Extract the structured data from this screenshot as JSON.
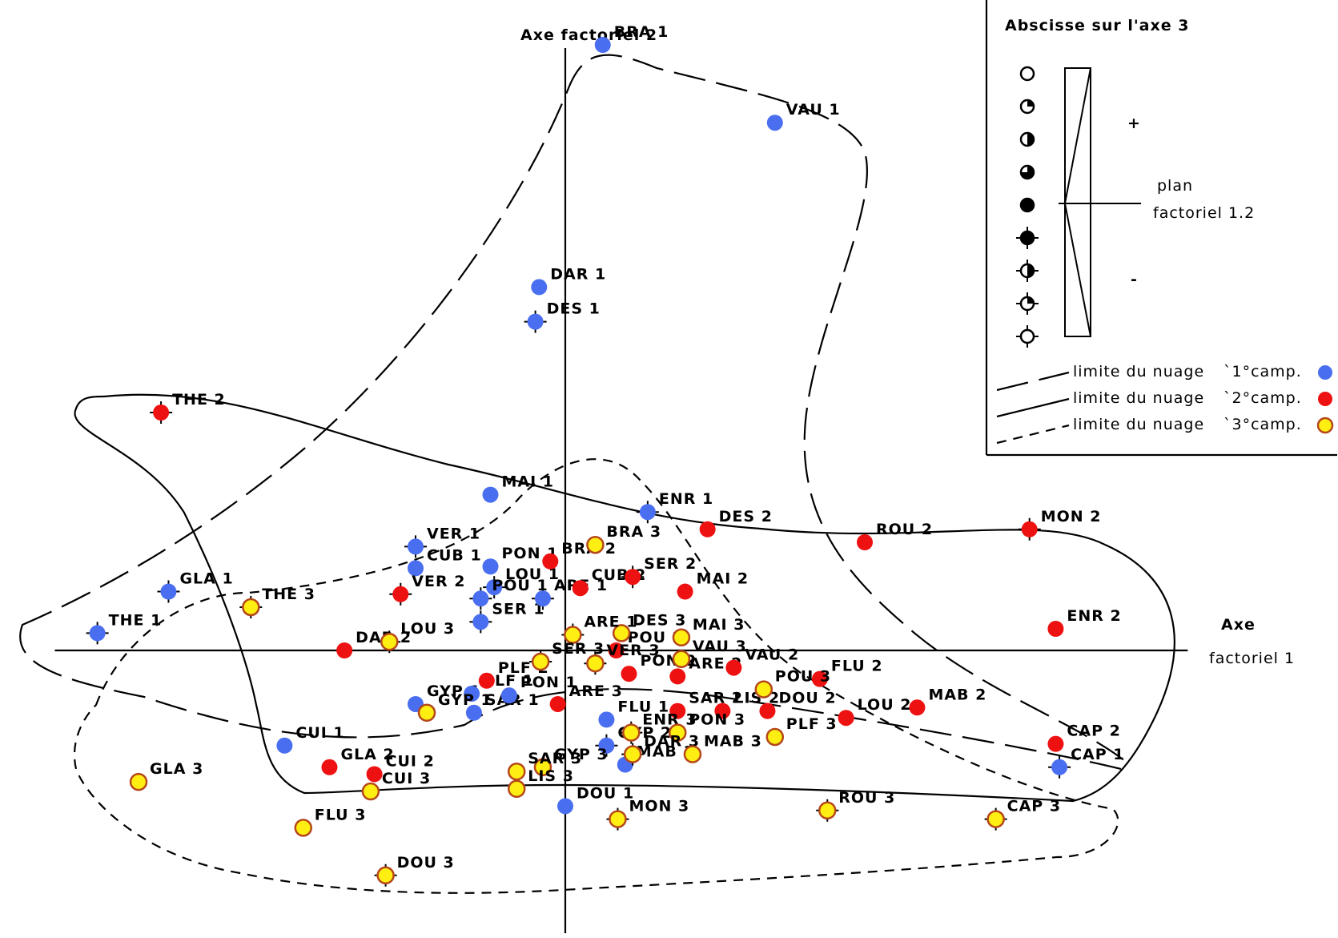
{
  "chart_data": {
    "type": "scatter",
    "xlabel": [
      "Axe",
      "factoriel 1"
    ],
    "ylabel": "Axe factoriel 2",
    "x_range": [
      -7.0,
      8.4
    ],
    "y_range": [
      -3.6,
      7.0
    ],
    "colors": {
      "1": "#4a6ef0",
      "2": "#ee1111",
      "3": "#ffee11"
    },
    "legend": {
      "title": "Abscisse sur l'axe 3",
      "plus": "+",
      "minus": "-",
      "plane": [
        "plan",
        "factoriel 1.2"
      ],
      "lines": [
        {
          "text": "limite du nuage",
          "campaign": "1°camp.",
          "group": "1"
        },
        {
          "text": "limite du nuage",
          "campaign": "2°camp.",
          "group": "2"
        },
        {
          "text": "limite du nuage",
          "campaign": "3°camp.",
          "group": "3"
        }
      ]
    },
    "points": [
      {
        "label": "BRA 1",
        "group": "1",
        "x": 0.5,
        "y": 7.0,
        "z": 0.1
      },
      {
        "label": "VAU 1",
        "group": "1",
        "x": 2.8,
        "y": 6.1,
        "z": 0.4
      },
      {
        "label": "DAR 1",
        "group": "1",
        "x": -0.35,
        "y": 4.2,
        "z": 0.4
      },
      {
        "label": "DES 1",
        "group": "1",
        "x": -0.4,
        "y": 3.8,
        "z": -0.2
      },
      {
        "label": "MAI 1",
        "group": "1",
        "x": -1.0,
        "y": 1.8,
        "z": 0.4
      },
      {
        "label": "ENR 1",
        "group": "1",
        "x": 1.1,
        "y": 1.6,
        "z": -0.3
      },
      {
        "label": "VER 1",
        "group": "1",
        "x": -2.0,
        "y": 1.2,
        "z": -0.2
      },
      {
        "label": "CUB 1",
        "group": "1",
        "x": -2.0,
        "y": 0.95,
        "z": 0.4
      },
      {
        "label": "PON 1",
        "group": "1",
        "x": -1.0,
        "y": 0.97,
        "z": 0.4
      },
      {
        "label": "LOU 1",
        "group": "1",
        "x": -0.95,
        "y": 0.73,
        "z": -0.2
      },
      {
        "label": "POU 1",
        "group": "1",
        "x": -1.13,
        "y": 0.6,
        "z": -0.2
      },
      {
        "label": "SER 1",
        "group": "1",
        "x": -1.13,
        "y": 0.33,
        "z": -0.2
      },
      {
        "label": "GLA 1",
        "group": "1",
        "x": -5.3,
        "y": 0.68,
        "z": -0.2
      },
      {
        "label": "THE 1",
        "group": "1",
        "x": -6.25,
        "y": 0.2,
        "z": -0.2
      },
      {
        "label": "GYP 1",
        "group": "1",
        "x": -2.0,
        "y": -0.62,
        "z": 0.4
      },
      {
        "label": "PLF 1",
        "group": "1",
        "x": -1.25,
        "y": -0.5,
        "z": 0.4
      },
      {
        "label": "SAR 1",
        "group": "1",
        "x": -1.22,
        "y": -0.72,
        "z": 0.4
      },
      {
        "label": "CUI 1",
        "group": "1",
        "x": -3.75,
        "y": -1.1,
        "z": 0.4
      },
      {
        "label": "FLU 1",
        "group": "1",
        "x": 0.55,
        "y": -0.8,
        "z": 0.4
      },
      {
        "label": "GYP 2",
        "group": "1",
        "x": 0.55,
        "y": -1.1,
        "z": -0.2
      },
      {
        "label": "ARE 1",
        "group": "1",
        "x": -0.3,
        "y": 0.6,
        "z": -0.2
      },
      {
        "label": "PON 1",
        "group": "1",
        "x": -0.75,
        "y": -0.52,
        "z": 0.4
      },
      {
        "label": "MAB 1",
        "group": "1",
        "x": 0.8,
        "y": -1.32,
        "z": 0.4
      },
      {
        "label": "DOU 1",
        "group": "1",
        "x": 0.0,
        "y": -1.8,
        "z": 0.4
      },
      {
        "label": "CAP 1",
        "group": "1",
        "x": 6.6,
        "y": -1.35,
        "z": -0.2
      },
      {
        "label": "THE 2",
        "group": "2",
        "x": -5.4,
        "y": 2.75,
        "z": -0.2
      },
      {
        "label": "DES 2",
        "group": "2",
        "x": 1.9,
        "y": 1.4,
        "z": 0.4
      },
      {
        "label": "ROU 2",
        "group": "2",
        "x": 4.0,
        "y": 1.25,
        "z": 0.4
      },
      {
        "label": "MON 2",
        "group": "2",
        "x": 6.2,
        "y": 1.4,
        "z": -0.2
      },
      {
        "label": "BRA 2",
        "group": "2",
        "x": -0.2,
        "y": 1.03,
        "z": 0.4
      },
      {
        "label": "CUB 2",
        "group": "2",
        "x": 0.2,
        "y": 0.72,
        "z": 0.4
      },
      {
        "label": "SER 2",
        "group": "2",
        "x": 0.9,
        "y": 0.85,
        "z": -0.2
      },
      {
        "label": "MAI 2",
        "group": "2",
        "x": 1.6,
        "y": 0.68,
        "z": 0.4
      },
      {
        "label": "VER 2",
        "group": "2",
        "x": -2.2,
        "y": 0.65,
        "z": -0.2
      },
      {
        "label": "ENR 2",
        "group": "2",
        "x": 6.55,
        "y": 0.25,
        "z": 0.4
      },
      {
        "label": "DAR 2",
        "group": "2",
        "x": -2.95,
        "y": 0.0,
        "z": 0.4
      },
      {
        "label": "POU 2",
        "group": "2",
        "x": 0.68,
        "y": 0.0,
        "z": 0.4
      },
      {
        "label": "PLF 2",
        "group": "2",
        "x": -1.05,
        "y": -0.35,
        "z": 0.4
      },
      {
        "label": "PON 2",
        "group": "2",
        "x": 0.85,
        "y": -0.27,
        "z": 0.4
      },
      {
        "label": "ARE 2",
        "group": "2",
        "x": 1.5,
        "y": -0.3,
        "z": 0.4
      },
      {
        "label": "VAU 2",
        "group": "2",
        "x": 2.25,
        "y": -0.2,
        "z": 0.4
      },
      {
        "label": "FLU 2",
        "group": "2",
        "x": 3.4,
        "y": -0.33,
        "z": 0.4
      },
      {
        "label": "ARE 3",
        "group": "2",
        "x": -0.1,
        "y": -0.62,
        "z": 0.4
      },
      {
        "label": "SAR 2",
        "group": "2",
        "x": 1.5,
        "y": -0.7,
        "z": 0.4
      },
      {
        "label": "LIS 2",
        "group": "2",
        "x": 2.1,
        "y": -0.7,
        "z": 0.4
      },
      {
        "label": "DOU 2",
        "group": "2",
        "x": 2.7,
        "y": -0.7,
        "z": 0.4
      },
      {
        "label": "LOU 2",
        "group": "2",
        "x": 3.75,
        "y": -0.78,
        "z": 0.1
      },
      {
        "label": "MAB 2",
        "group": "2",
        "x": 4.7,
        "y": -0.66,
        "z": 0.1
      },
      {
        "label": "CAP 2",
        "group": "2",
        "x": 6.55,
        "y": -1.08,
        "z": 0.4
      },
      {
        "label": "GLA 2",
        "group": "2",
        "x": -3.15,
        "y": -1.35,
        "z": 0.4
      },
      {
        "label": "CUI 2",
        "group": "2",
        "x": -2.55,
        "y": -1.43,
        "z": 0.4
      },
      {
        "label": "BRA 3",
        "group": "3",
        "x": 0.4,
        "y": 1.22,
        "z": 0.4
      },
      {
        "label": "THE 3",
        "group": "3",
        "x": -4.2,
        "y": 0.5,
        "z": -0.2
      },
      {
        "label": "LOU 3",
        "group": "3",
        "x": -2.35,
        "y": 0.1,
        "z": -0.2
      },
      {
        "label": "DES 3",
        "group": "3",
        "x": 0.75,
        "y": 0.2,
        "z": 0.4
      },
      {
        "label": "ARE 1",
        "group": "3",
        "x": 0.1,
        "y": 0.18,
        "z": -0.2
      },
      {
        "label": "MAI 3",
        "group": "3",
        "x": 1.55,
        "y": 0.15,
        "z": 0.4
      },
      {
        "label": "VAU 3",
        "group": "3",
        "x": 1.55,
        "y": -0.1,
        "z": 0.4
      },
      {
        "label": "SER 3",
        "group": "3",
        "x": -0.33,
        "y": -0.13,
        "z": -0.2
      },
      {
        "label": "VER 3",
        "group": "3",
        "x": 0.4,
        "y": -0.15,
        "z": -0.2
      },
      {
        "label": "POU 3",
        "group": "3",
        "x": 2.65,
        "y": -0.45,
        "z": 0.4
      },
      {
        "label": "GYP 1",
        "group": "3",
        "x": -1.85,
        "y": -0.72,
        "z": 0.4
      },
      {
        "label": "ENR 3",
        "group": "3",
        "x": 0.88,
        "y": -0.95,
        "z": -0.2
      },
      {
        "label": "PON 3",
        "group": "3",
        "x": 1.5,
        "y": -0.95,
        "z": 0.4
      },
      {
        "label": "PLF 3",
        "group": "3",
        "x": 2.8,
        "y": -1.0,
        "z": 0.4
      },
      {
        "label": "DAR 3",
        "group": "3",
        "x": 0.9,
        "y": -1.2,
        "z": -0.2
      },
      {
        "label": "MAB 3",
        "group": "3",
        "x": 1.7,
        "y": -1.2,
        "z": 0.4
      },
      {
        "label": "GYP 3",
        "group": "3",
        "x": -0.3,
        "y": -1.35,
        "z": 0.4
      },
      {
        "label": "SAR 3",
        "group": "3",
        "x": -0.65,
        "y": -1.4,
        "z": 0.4
      },
      {
        "label": "LIS 3",
        "group": "3",
        "x": -0.65,
        "y": -1.6,
        "z": 0.4
      },
      {
        "label": "CUI 3",
        "group": "3",
        "x": -2.6,
        "y": -1.63,
        "z": 0.4
      },
      {
        "label": "GLA 3",
        "group": "3",
        "x": -5.7,
        "y": -1.52,
        "z": 0.4
      },
      {
        "label": "FLU 3",
        "group": "3",
        "x": -3.5,
        "y": -2.05,
        "z": 0.1
      },
      {
        "label": "MON 3",
        "group": "3",
        "x": 0.7,
        "y": -1.95,
        "z": -0.2
      },
      {
        "label": "ROU 3",
        "group": "3",
        "x": 3.5,
        "y": -1.85,
        "z": -0.2
      },
      {
        "label": "CAP 3",
        "group": "3",
        "x": 5.75,
        "y": -1.95,
        "z": -0.2
      },
      {
        "label": "DOU 3",
        "group": "3",
        "x": -2.4,
        "y": -2.6,
        "z": -0.2
      }
    ]
  }
}
